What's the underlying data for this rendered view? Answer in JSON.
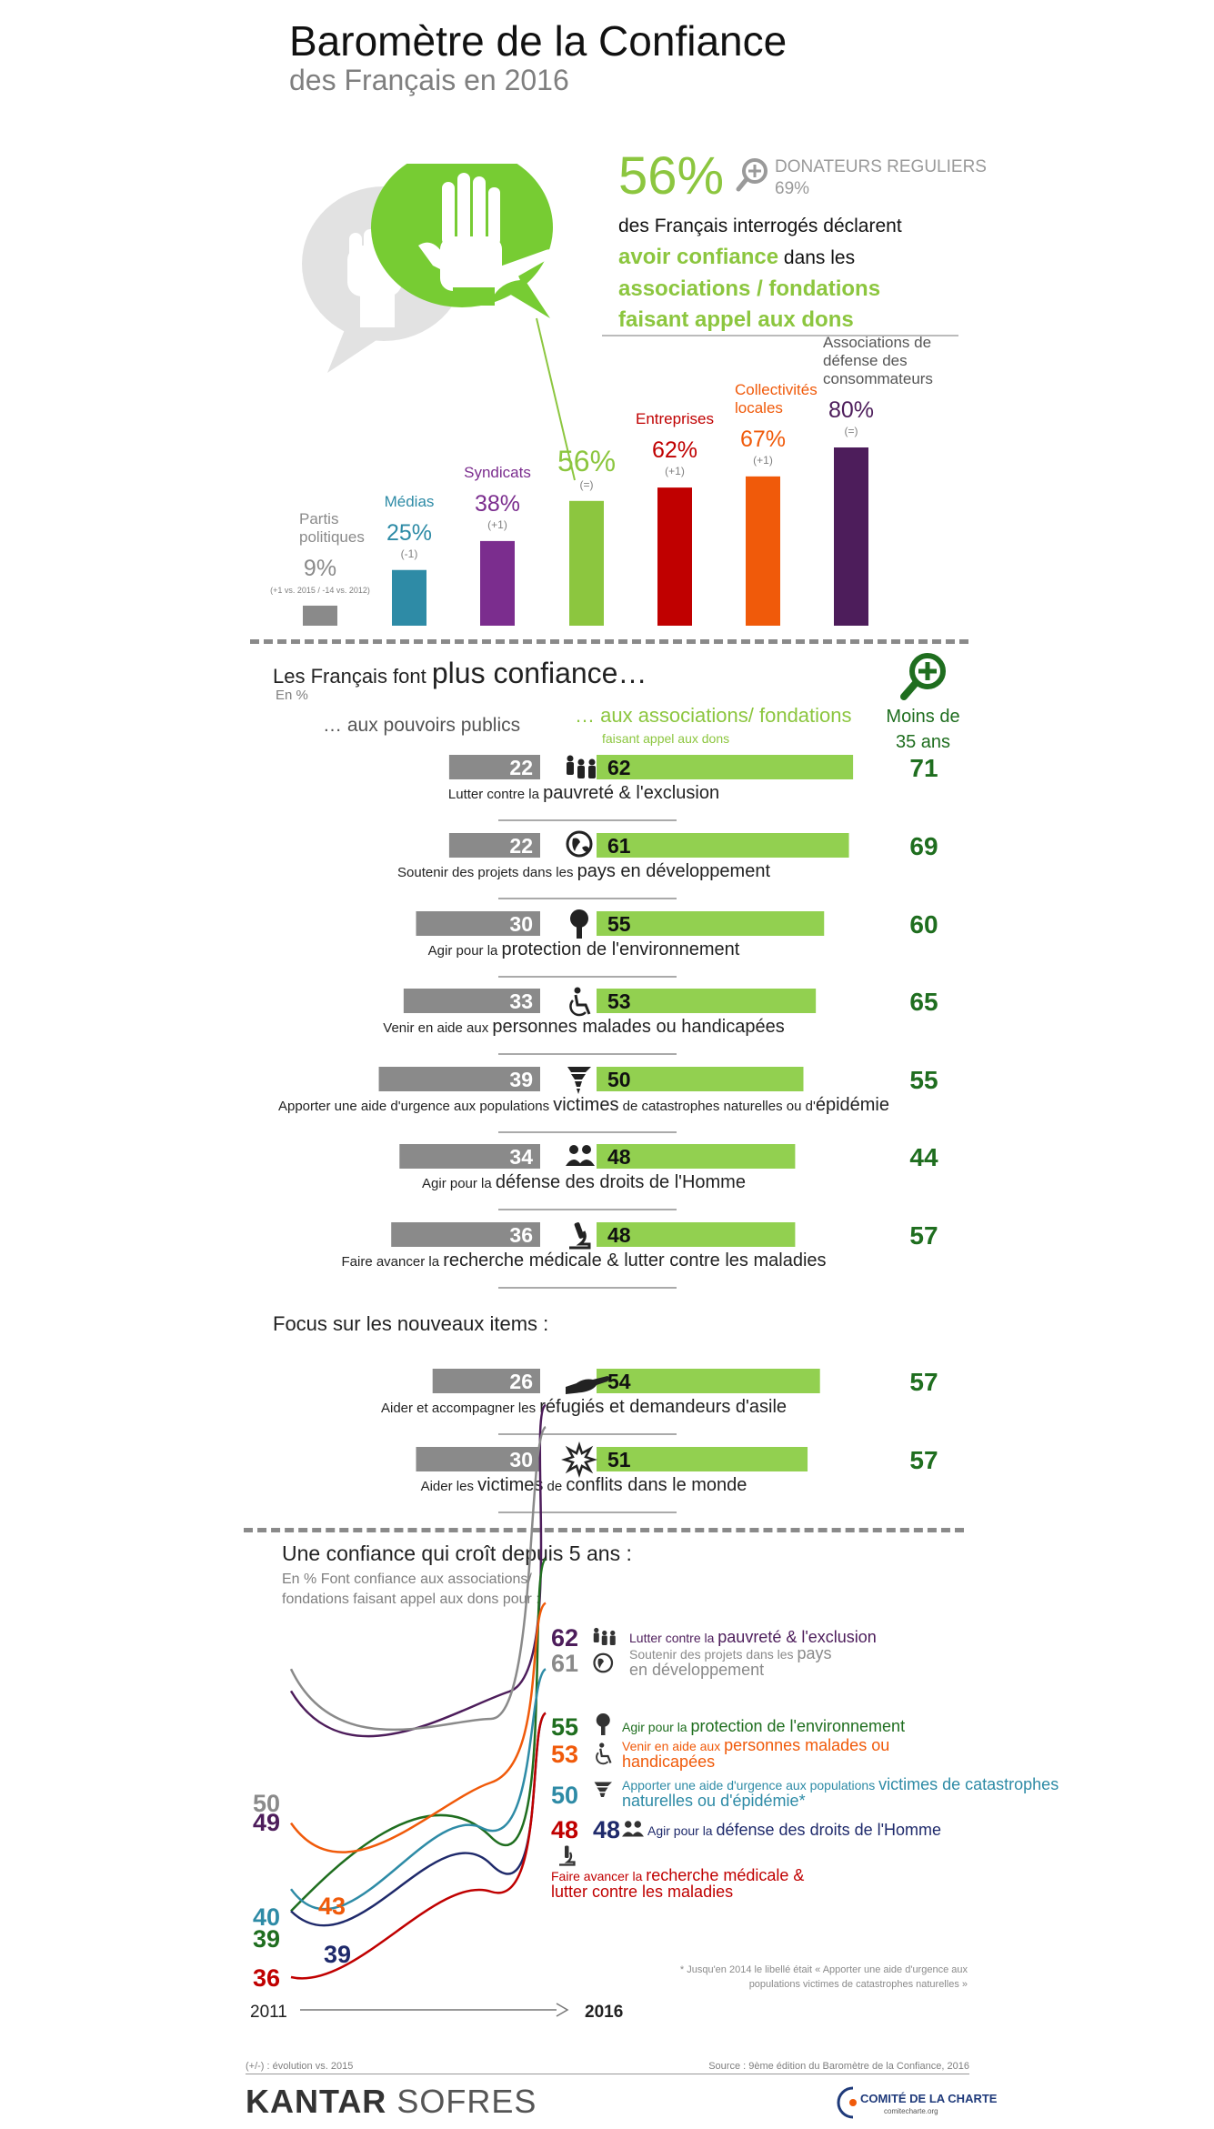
{
  "header": {
    "title": "Baromètre de la Confiance",
    "subtitle": "des Français en 2016"
  },
  "hero": {
    "percent": "56%",
    "regular_donors_label": "DONATEURS REGULIERS",
    "regular_donors_value": "69%",
    "text_line1": "des Français interrogés déclarent",
    "text_highlight1": "avoir confiance",
    "text_line2": " dans les",
    "text_highlight2": "associations / fondations faisant appel aux dons"
  },
  "section2": {
    "title_prefix": "Les Français font ",
    "title_big": "plus confiance…",
    "subtitle": "En %",
    "col_public": "… aux pouvoirs  publics",
    "col_assoc": "…  aux associations/ fondations",
    "col_assoc_sub": "faisant appel aux dons",
    "col_young": "Moins de 35 ans",
    "focus_title": "Focus sur les nouveaux items :"
  },
  "section3": {
    "title": "Une confiance qui croît depuis 5 ans :",
    "subtitle": "En % Font confiance aux associations/ fondations faisant appel aux dons pour :",
    "footnote": "* Jusqu'en 2014 le libellé était « Apporter une aide d'urgence aux populations victimes de catastrophes naturelles »",
    "year_start": "2011",
    "year_end": "2016"
  },
  "footer": {
    "legend": "(+/-) : évolution vs. 2015",
    "source": "Source : 9ème édition du Baromètre de la Confiance, 2016",
    "brand_a": "KANTAR",
    "brand_b": " SOFRES",
    "partner": "COMITÉ DE LA CHARTE",
    "partner_url": "comitecharte.org"
  },
  "chart_data": [
    {
      "type": "bar",
      "categories": [
        "Partis politiques",
        "Médias",
        "Syndicats",
        "",
        "Entreprises",
        "Collectivités locales",
        "Associations de défense des consommateurs"
      ],
      "values": [
        9,
        25,
        38,
        56,
        62,
        67,
        80
      ],
      "value_labels": [
        "9%",
        "25%",
        "38%",
        "56%",
        "62%",
        "67%",
        "80%"
      ],
      "evolutions": [
        "(+1 vs. 2015 / -14 vs. 2012)",
        "(-1)",
        "(+1)",
        "(=)",
        "(+1)",
        "(+1)",
        "(=)"
      ],
      "colors": [
        "#8a8a8a",
        "#2e8ba6",
        "#7b2d8e",
        "#8cc63f",
        "#c00000",
        "#f05a0a",
        "#4d1d5b"
      ],
      "ylim": [
        0,
        100
      ]
    },
    {
      "type": "bar",
      "orientation": "horizontal",
      "series": [
        {
          "name": "… aux pouvoirs  publics",
          "color": "#8a8a8a"
        },
        {
          "name": "…  aux associations/ fondations",
          "color": "#92d050"
        },
        {
          "name": "Moins de 35 ans",
          "color": "#1f6e1f"
        }
      ],
      "rows": [
        {
          "prefix": "Lutter contre la ",
          "main": "pauvreté & l'exclusion",
          "suffix": "",
          "icon": "people-icon",
          "public": 22,
          "assoc": 62,
          "young": 71
        },
        {
          "prefix": "Soutenir des projets dans les ",
          "main": "pays en développement",
          "suffix": "",
          "icon": "globe-icon",
          "public": 22,
          "assoc": 61,
          "young": 69
        },
        {
          "prefix": "Agir pour la ",
          "main": "protection de l'environnement",
          "suffix": "",
          "icon": "tree-icon",
          "public": 30,
          "assoc": 55,
          "young": 60
        },
        {
          "prefix": "Venir en aide aux ",
          "main": "personnes malades ou handicapées",
          "suffix": "",
          "icon": "wheelchair-icon",
          "public": 33,
          "assoc": 53,
          "young": 65
        },
        {
          "prefix": "Apporter une aide d'urgence aux populations ",
          "main": "victimes",
          "suffix": " de catastrophes naturelles",
          "suffix2": " ou d'",
          "main2": "épidémie",
          "icon": "tornado-icon",
          "public": 39,
          "assoc": 50,
          "young": 55
        },
        {
          "prefix": "Agir pour la ",
          "main": "défense des droits de l'Homme",
          "suffix": "",
          "icon": "group-icon",
          "public": 34,
          "assoc": 48,
          "young": 44
        },
        {
          "prefix": "Faire avancer la ",
          "main": "recherche médicale & lutter contre les maladies",
          "suffix": "",
          "icon": "microscope-icon",
          "public": 36,
          "assoc": 48,
          "young": 57
        },
        {
          "prefix": "Aider et accompagner les ",
          "main": "réfugiés et demandeurs d'asile",
          "suffix": "",
          "icon": "hand-icon",
          "public": 26,
          "assoc": 54,
          "young": 57
        },
        {
          "prefix": "Aider les ",
          "main": "victimes",
          "suffix": " de ",
          "main2": "conflits dans le monde",
          "icon": "explosion-icon",
          "public": 30,
          "assoc": 51,
          "young": 57
        }
      ]
    },
    {
      "type": "line",
      "x": [
        "2011",
        "2016"
      ],
      "series": [
        {
          "prefix": "Lutter contre la ",
          "main": "pauvreté & l'exclusion",
          "color": "#4d1d5b",
          "start": 49,
          "end": 62
        },
        {
          "prefix": "Soutenir des projets dans les ",
          "main": "pays en développement",
          "color": "#8a8a8a",
          "start": 50,
          "end": 61
        },
        {
          "prefix": "Agir pour la ",
          "main": "protection de l'environnement",
          "color": "#1f6e1f",
          "start": 39,
          "end": 55
        },
        {
          "prefix": "Venir en aide aux ",
          "main": "personnes malades ou handicapées",
          "color": "#f05a0a",
          "start": 43,
          "end": 53
        },
        {
          "prefix": "Apporter une aide d'urgence aux populations ",
          "main": "victimes de catastrophes naturelles ou d'épidémie*",
          "color": "#2e8ba6",
          "start": 40,
          "end": 50
        },
        {
          "prefix": "Agir pour la ",
          "main": "défense des droits de l'Homme",
          "color": "#1f2a6b",
          "start": 39,
          "end": 48
        },
        {
          "prefix": "Faire avancer la ",
          "main": "recherche médicale & lutter contre les maladies",
          "color": "#c00000",
          "start": 36,
          "end": 48
        }
      ]
    }
  ]
}
